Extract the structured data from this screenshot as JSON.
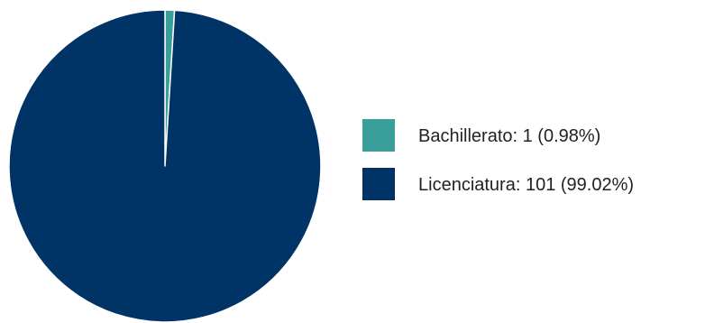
{
  "chart_data": {
    "type": "pie",
    "title": "",
    "slices": [
      {
        "label": "Bachillerato",
        "value": 1,
        "percent": 0.98,
        "color": "#3A9F9A",
        "legend_text": "Bachillerato: 1 (0.98%)"
      },
      {
        "label": "Licenciatura",
        "value": 101,
        "percent": 99.02,
        "color": "#003366",
        "legend_text": "Licenciatura: 101 (99.02%)"
      }
    ],
    "legend_position": "right",
    "start_angle": "top",
    "direction": "clockwise"
  }
}
